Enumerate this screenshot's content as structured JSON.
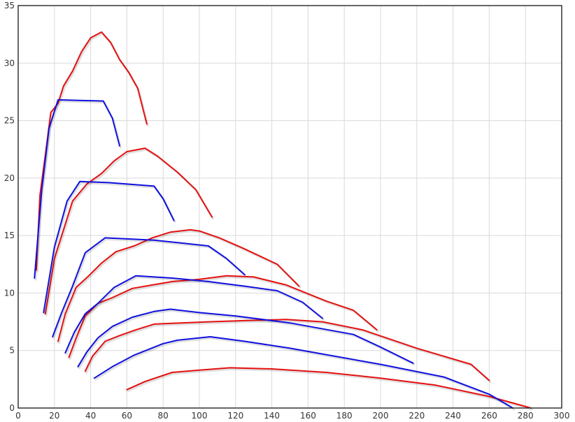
{
  "chart_data": {
    "type": "line",
    "title": "",
    "xlabel": "",
    "ylabel": "",
    "xlim": [
      0,
      300
    ],
    "ylim": [
      0,
      35
    ],
    "x_ticks": [
      0,
      20,
      40,
      60,
      80,
      100,
      120,
      140,
      160,
      180,
      200,
      220,
      240,
      260,
      280,
      300
    ],
    "y_ticks": [
      0,
      5,
      10,
      15,
      20,
      25,
      30,
      35
    ],
    "grid": true,
    "legend": "none",
    "colors": {
      "red": "#e41010",
      "blue": "#1010e0"
    },
    "series": [
      {
        "color": "red",
        "x": [
          10,
          12,
          15,
          18,
          22,
          25,
          30,
          35,
          40,
          46,
          51,
          56,
          61,
          66,
          71
        ],
        "y": [
          12,
          18.5,
          22,
          25.7,
          26.5,
          28,
          29.3,
          31,
          32.2,
          32.7,
          31.8,
          30.3,
          29.2,
          27.8,
          24.7
        ]
      },
      {
        "color": "blue",
        "x": [
          9,
          13,
          17,
          22,
          47,
          52,
          56
        ],
        "y": [
          11.3,
          19,
          24.3,
          26.8,
          26.7,
          25.2,
          22.8
        ]
      },
      {
        "color": "red",
        "x": [
          15,
          20,
          25,
          30,
          38,
          46,
          53,
          60,
          70,
          77,
          88,
          98,
          107
        ],
        "y": [
          8.2,
          13,
          15.5,
          18,
          19.5,
          20.4,
          21.5,
          22.3,
          22.6,
          21.9,
          20.5,
          19,
          16.6
        ]
      },
      {
        "color": "blue",
        "x": [
          14,
          20,
          27,
          34,
          50,
          75,
          80,
          86
        ],
        "y": [
          8.3,
          14,
          18,
          19.7,
          19.6,
          19.3,
          18.2,
          16.3
        ]
      },
      {
        "color": "red",
        "x": [
          22,
          26,
          32,
          39,
          46,
          54,
          64,
          74,
          84,
          95,
          100,
          111,
          124,
          143,
          155
        ],
        "y": [
          5.8,
          8.2,
          10.5,
          11.5,
          12.6,
          13.6,
          14.1,
          14.8,
          15.3,
          15.5,
          15.4,
          14.8,
          13.9,
          12.5,
          10.6
        ]
      },
      {
        "color": "blue",
        "x": [
          19,
          24,
          30,
          37,
          48,
          75,
          105,
          115,
          125
        ],
        "y": [
          6.2,
          8.3,
          10.6,
          13.5,
          14.8,
          14.6,
          14.1,
          13,
          11.6
        ]
      },
      {
        "color": "red",
        "x": [
          28,
          32,
          37,
          44,
          52,
          63,
          74,
          85,
          100,
          115,
          130,
          148,
          170,
          185,
          198
        ],
        "y": [
          4.4,
          6.1,
          8,
          9.1,
          9.6,
          10.4,
          10.7,
          11,
          11.2,
          11.5,
          11.4,
          10.7,
          9.3,
          8.5,
          6.8
        ]
      },
      {
        "color": "blue",
        "x": [
          26,
          31,
          37,
          44,
          53,
          65,
          85,
          105,
          125,
          143,
          157,
          168
        ],
        "y": [
          4.8,
          6.6,
          8.2,
          9.1,
          10.5,
          11.5,
          11.3,
          11,
          10.6,
          10.2,
          9.2,
          7.8
        ]
      },
      {
        "color": "red",
        "x": [
          37,
          41,
          48,
          56,
          65,
          75,
          90,
          105,
          125,
          148,
          168,
          190,
          220,
          250,
          260
        ],
        "y": [
          3.2,
          4.5,
          5.8,
          6.3,
          6.8,
          7.3,
          7.4,
          7.5,
          7.6,
          7.7,
          7.5,
          6.8,
          5.2,
          3.8,
          2.4
        ]
      },
      {
        "color": "blue",
        "x": [
          33,
          38,
          44,
          52,
          63,
          75,
          84,
          100,
          120,
          150,
          185,
          200,
          218
        ],
        "y": [
          3.6,
          4.9,
          6.1,
          7.1,
          7.9,
          8.4,
          8.6,
          8.3,
          8,
          7.4,
          6.4,
          5.3,
          3.9
        ]
      },
      {
        "color": "red",
        "x": [
          60,
          70,
          85,
          100,
          117,
          140,
          170,
          200,
          230,
          260,
          283
        ],
        "y": [
          1.6,
          2.3,
          3.1,
          3.3,
          3.5,
          3.4,
          3.1,
          2.6,
          2,
          1,
          0
        ]
      },
      {
        "color": "blue",
        "x": [
          42,
          52,
          64,
          80,
          88,
          106,
          125,
          150,
          200,
          235,
          260,
          273
        ],
        "y": [
          2.6,
          3.6,
          4.6,
          5.6,
          5.9,
          6.2,
          5.8,
          5.2,
          3.8,
          2.7,
          1.2,
          0
        ]
      }
    ]
  }
}
